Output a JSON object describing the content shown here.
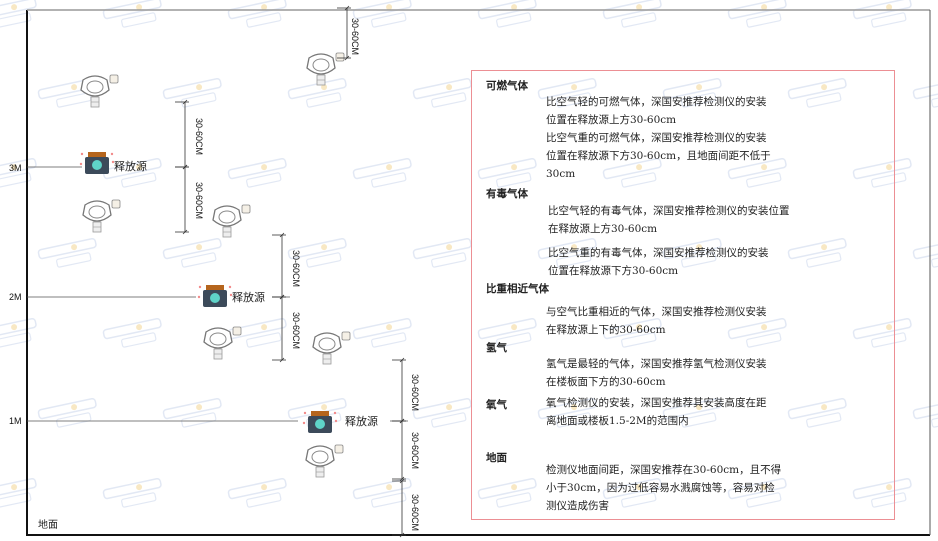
{
  "diagram": {
    "levels": [
      "3M",
      "2M",
      "1M"
    ],
    "ground_label": "地面",
    "source_label": "释放源",
    "dimension_label": "30-60CM",
    "watermark": {
      "brand": "SINGAN",
      "chinese": "深国安"
    },
    "colors": {
      "frame": "#111111",
      "notes_border": "#ec8f94",
      "watermark": "#c6d3ea"
    }
  },
  "notes": {
    "sections": [
      {
        "title": "可燃气体",
        "paragraphs": [
          [
            "比空气轻的可燃气体，深国安推荐检测仪的安装",
            "位置在释放源上方30-60cm"
          ],
          [
            "比空气重的可燃气体，深国安推荐检测仪的安装",
            "位置在释放源下方30-60cm，且地面间距不低于",
            "30cm"
          ]
        ]
      },
      {
        "title": "有毒气体",
        "paragraphs": [
          [
            "比空气轻的有毒气体，深国安推荐检测仪的安装位置",
            "在释放源上方30-60cm"
          ],
          [
            "比空气重的有毒气体，深国安推荐检测仪的安装",
            "位置在释放源下方30-60cm"
          ]
        ]
      },
      {
        "title": "比重相近气体",
        "paragraphs": [
          [
            "与空气比重相近的气体，深国安推荐检测仪安装",
            "在释放源上下的30-60cm"
          ]
        ]
      },
      {
        "title": "氢气",
        "paragraphs": [
          [
            "氢气是最轻的气体，深国安推荐氢气检测仪安装",
            "在楼板面下方的30-60cm"
          ]
        ]
      },
      {
        "title": "氧气",
        "paragraphs": [
          [
            "氧气检测仪的安装，深国安推荐其安装高度在距",
            "离地面或楼板1.5-2M的范围内"
          ]
        ]
      },
      {
        "title": "地面",
        "paragraphs": [
          [
            "检测仪地面间距，深国安推荐在30-60cm，且不得",
            "小于30cm，因为过低容易水溅腐蚀等，容易对检",
            "测仪造成伤害"
          ]
        ]
      }
    ]
  }
}
